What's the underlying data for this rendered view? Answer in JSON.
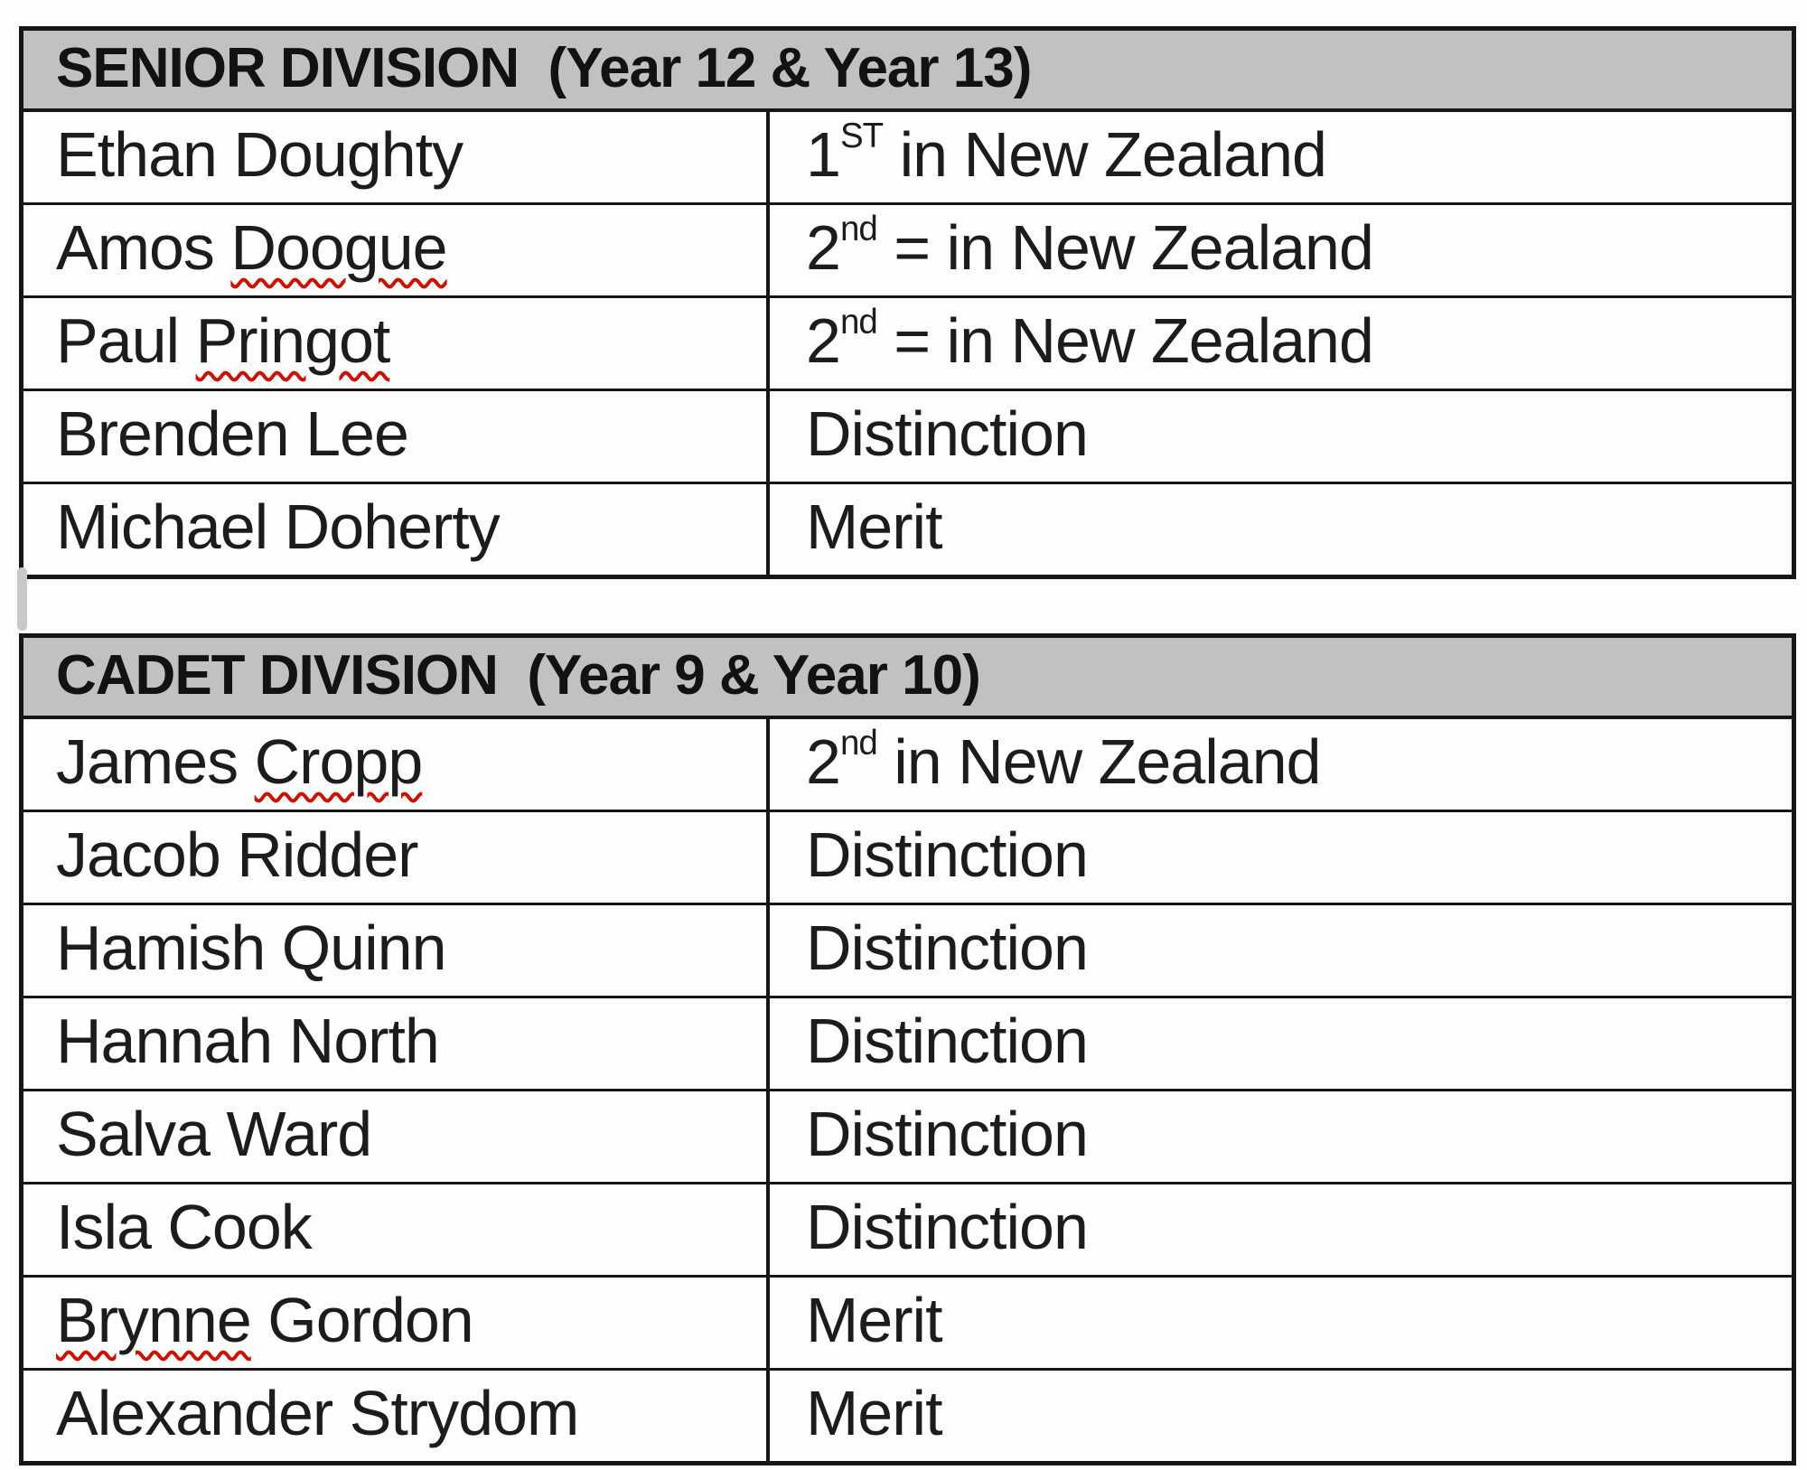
{
  "colors": {
    "header_bg": "#c1c1c1",
    "border": "#161616",
    "squiggle": "#cc1100",
    "row_bg": "#fefefe"
  },
  "tables": [
    {
      "title": "SENIOR DIVISION  (Year 12 & Year 13)",
      "rows": [
        {
          "name": [
            {
              "text": "Ethan Doughty",
              "misspelled": false
            }
          ],
          "result": [
            {
              "text": "1",
              "sup": false
            },
            {
              "text": "ST",
              "sup": true
            },
            {
              "text": " in New Zealand",
              "sup": false
            }
          ]
        },
        {
          "name": [
            {
              "text": "Amos ",
              "misspelled": false
            },
            {
              "text": "Doogue",
              "misspelled": true
            }
          ],
          "result": [
            {
              "text": "2",
              "sup": false
            },
            {
              "text": "nd",
              "sup": true
            },
            {
              "text": " = in New Zealand",
              "sup": false
            }
          ]
        },
        {
          "name": [
            {
              "text": "Paul ",
              "misspelled": false
            },
            {
              "text": "Pringot",
              "misspelled": true
            }
          ],
          "result": [
            {
              "text": "2",
              "sup": false
            },
            {
              "text": "nd",
              "sup": true
            },
            {
              "text": " = in New Zealand",
              "sup": false
            }
          ]
        },
        {
          "name": [
            {
              "text": "Brenden Lee",
              "misspelled": false
            }
          ],
          "result": [
            {
              "text": "Distinction",
              "sup": false
            }
          ]
        },
        {
          "name": [
            {
              "text": "Michael Doherty",
              "misspelled": false
            }
          ],
          "result": [
            {
              "text": "Merit",
              "sup": false
            }
          ]
        }
      ]
    },
    {
      "title": "CADET DIVISION  (Year 9 & Year 10)",
      "rows": [
        {
          "name": [
            {
              "text": "James ",
              "misspelled": false
            },
            {
              "text": "Cropp",
              "misspelled": true
            }
          ],
          "result": [
            {
              "text": "2",
              "sup": false
            },
            {
              "text": "nd",
              "sup": true
            },
            {
              "text": " in New Zealand",
              "sup": false
            }
          ]
        },
        {
          "name": [
            {
              "text": "Jacob Ridder",
              "misspelled": false
            }
          ],
          "result": [
            {
              "text": "Distinction",
              "sup": false
            }
          ]
        },
        {
          "name": [
            {
              "text": "Hamish Quinn",
              "misspelled": false
            }
          ],
          "result": [
            {
              "text": "Distinction",
              "sup": false
            }
          ]
        },
        {
          "name": [
            {
              "text": "Hannah North",
              "misspelled": false
            }
          ],
          "result": [
            {
              "text": "Distinction",
              "sup": false
            }
          ]
        },
        {
          "name": [
            {
              "text": "Salva Ward",
              "misspelled": false
            }
          ],
          "result": [
            {
              "text": "Distinction",
              "sup": false
            }
          ]
        },
        {
          "name": [
            {
              "text": "Isla Cook",
              "misspelled": false
            }
          ],
          "result": [
            {
              "text": "Distinction",
              "sup": false
            }
          ]
        },
        {
          "name": [
            {
              "text": "Brynne",
              "misspelled": true
            },
            {
              "text": " Gordon",
              "misspelled": false
            }
          ],
          "result": [
            {
              "text": "Merit",
              "sup": false
            }
          ]
        },
        {
          "name": [
            {
              "text": "Alexander Strydom",
              "misspelled": false
            }
          ],
          "result": [
            {
              "text": "Merit",
              "sup": false
            }
          ]
        }
      ]
    }
  ]
}
